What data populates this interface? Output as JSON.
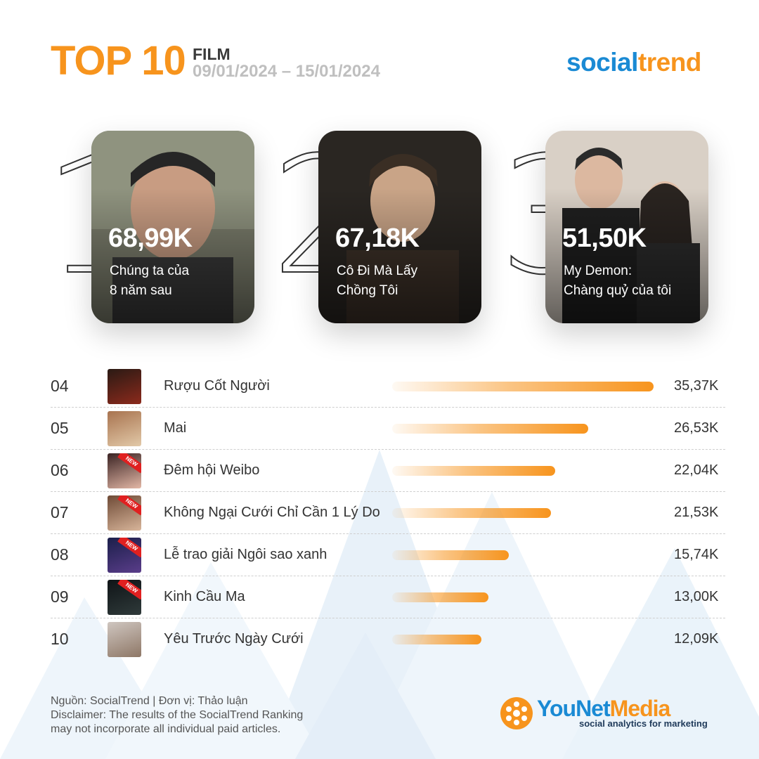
{
  "header": {
    "title": "TOP 10",
    "category": "FILM",
    "date_range": "09/01/2024 – 15/01/2024",
    "brand_part1": "social",
    "brand_part2": "trend"
  },
  "chart_data": {
    "type": "bar",
    "categories": [
      "Chúng ta của 8 năm sau",
      "Cô Đi Mà Lấy Chồng Tôi",
      "My Demon: Chàng quỷ của tôi",
      "Rượu Cốt Người",
      "Mai",
      "Đêm hội Weibo",
      "Không Ngại Cưới Chỉ Cần 1 Lý Do",
      "Lễ trao giải Ngôi sao xanh",
      "Kinh Cầu Ma",
      "Yêu Trước Ngày Cưới"
    ],
    "values": [
      68990,
      67180,
      51500,
      35370,
      26530,
      22040,
      21530,
      15740,
      13000,
      12090
    ],
    "bar_color": "#f7941d",
    "top3": [
      {
        "rank": "1",
        "value_label": "68,99K",
        "title_line1": "Chúng ta của",
        "title_line2": "8 năm sau"
      },
      {
        "rank": "2",
        "value_label": "67,18K",
        "title_line1": "Cô Đi Mà Lấy",
        "title_line2": "Chồng Tôi"
      },
      {
        "rank": "3",
        "value_label": "51,50K",
        "title_line1": "My Demon:",
        "title_line2": "Chàng quỷ của tôi"
      }
    ],
    "rows": [
      {
        "rank": "04",
        "name": "Rượu Cốt Người",
        "value": 35370,
        "value_label": "35,37K",
        "new": false
      },
      {
        "rank": "05",
        "name": "Mai",
        "value": 26530,
        "value_label": "26,53K",
        "new": false
      },
      {
        "rank": "06",
        "name": "Đêm hội Weibo",
        "value": 22040,
        "value_label": "22,04K",
        "new": true
      },
      {
        "rank": "07",
        "name": "Không Ngại Cưới Chỉ Cần 1 Lý Do",
        "value": 21530,
        "value_label": "21,53K",
        "new": true
      },
      {
        "rank": "08",
        "name": "Lễ trao giải Ngôi sao xanh",
        "value": 15740,
        "value_label": "15,74K",
        "new": true
      },
      {
        "rank": "09",
        "name": "Kinh Cầu Ma",
        "value": 13000,
        "value_label": "13,00K",
        "new": true
      },
      {
        "rank": "10",
        "name": "Yêu Trước Ngày Cưới",
        "value": 12090,
        "value_label": "12,09K",
        "new": false
      }
    ]
  },
  "new_tag": "NEW",
  "footer": {
    "source": "Nguồn: SocialTrend |  Đơn vị: Thảo luận",
    "disclaimer_line1": "Disclaimer: The results of the SocialTrend Ranking",
    "disclaimer_line2": "may not incorporate all individual paid articles."
  },
  "logo": {
    "word1": "YouNet",
    "word2": "Media",
    "tagline": "social analytics for marketing"
  },
  "colors": {
    "accent": "#f7941d",
    "brand_blue": "#1a8ad4",
    "muted": "#bfbfbf"
  }
}
